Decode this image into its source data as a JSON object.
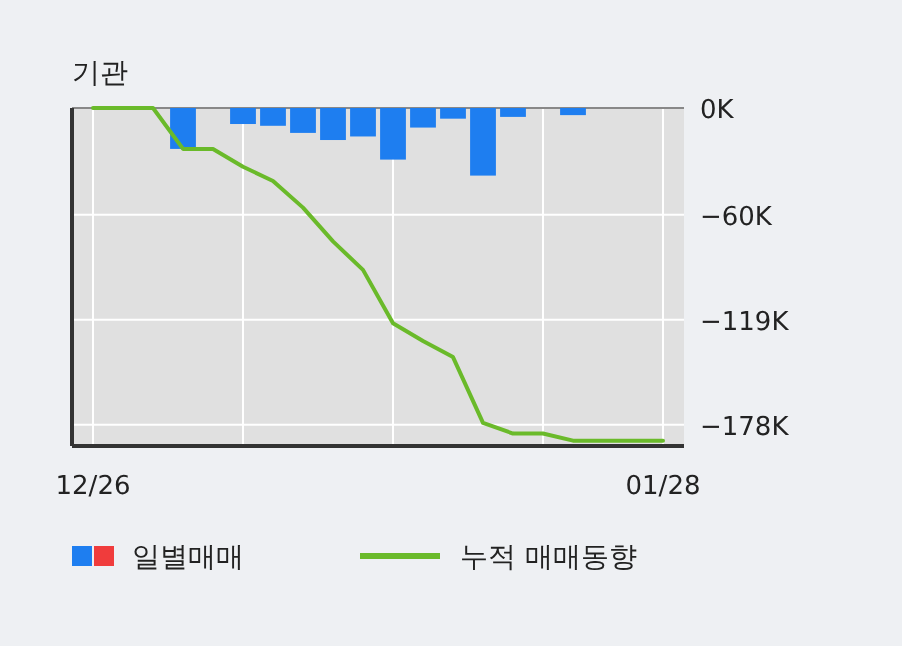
{
  "chart_data": {
    "type": "bar",
    "title": "기관",
    "categories": [
      "12/26",
      null,
      null,
      null,
      null,
      null,
      null,
      null,
      null,
      null,
      null,
      null,
      null,
      null,
      null,
      null,
      null,
      null,
      null,
      "01/28"
    ],
    "series": [
      {
        "name": "일별매매",
        "color": "#1e7ef0",
        "values": [
          0,
          0,
          0,
          -23,
          0,
          -9,
          -10,
          -14,
          -18,
          -16,
          -29,
          -11,
          -6,
          -38,
          -5,
          0,
          -4,
          0,
          0,
          0
        ]
      },
      {
        "name": "누적 매매동향",
        "type": "line",
        "color": "#6aba2a",
        "values": [
          0,
          0,
          0,
          -23,
          -23,
          -33,
          -41,
          -56,
          -75,
          -91,
          -121,
          -131,
          -140,
          -177,
          -183,
          -183,
          -187,
          -187,
          -187,
          -187
        ]
      }
    ],
    "ylim": [
      -190,
      0
    ],
    "yticks": [
      {
        "value": 0,
        "label": "0K"
      },
      {
        "value": -60,
        "label": "−60K"
      },
      {
        "value": -119,
        "label": "−119K"
      },
      {
        "value": -178,
        "label": "−178K"
      }
    ],
    "grid": true,
    "legend": "bottom"
  }
}
